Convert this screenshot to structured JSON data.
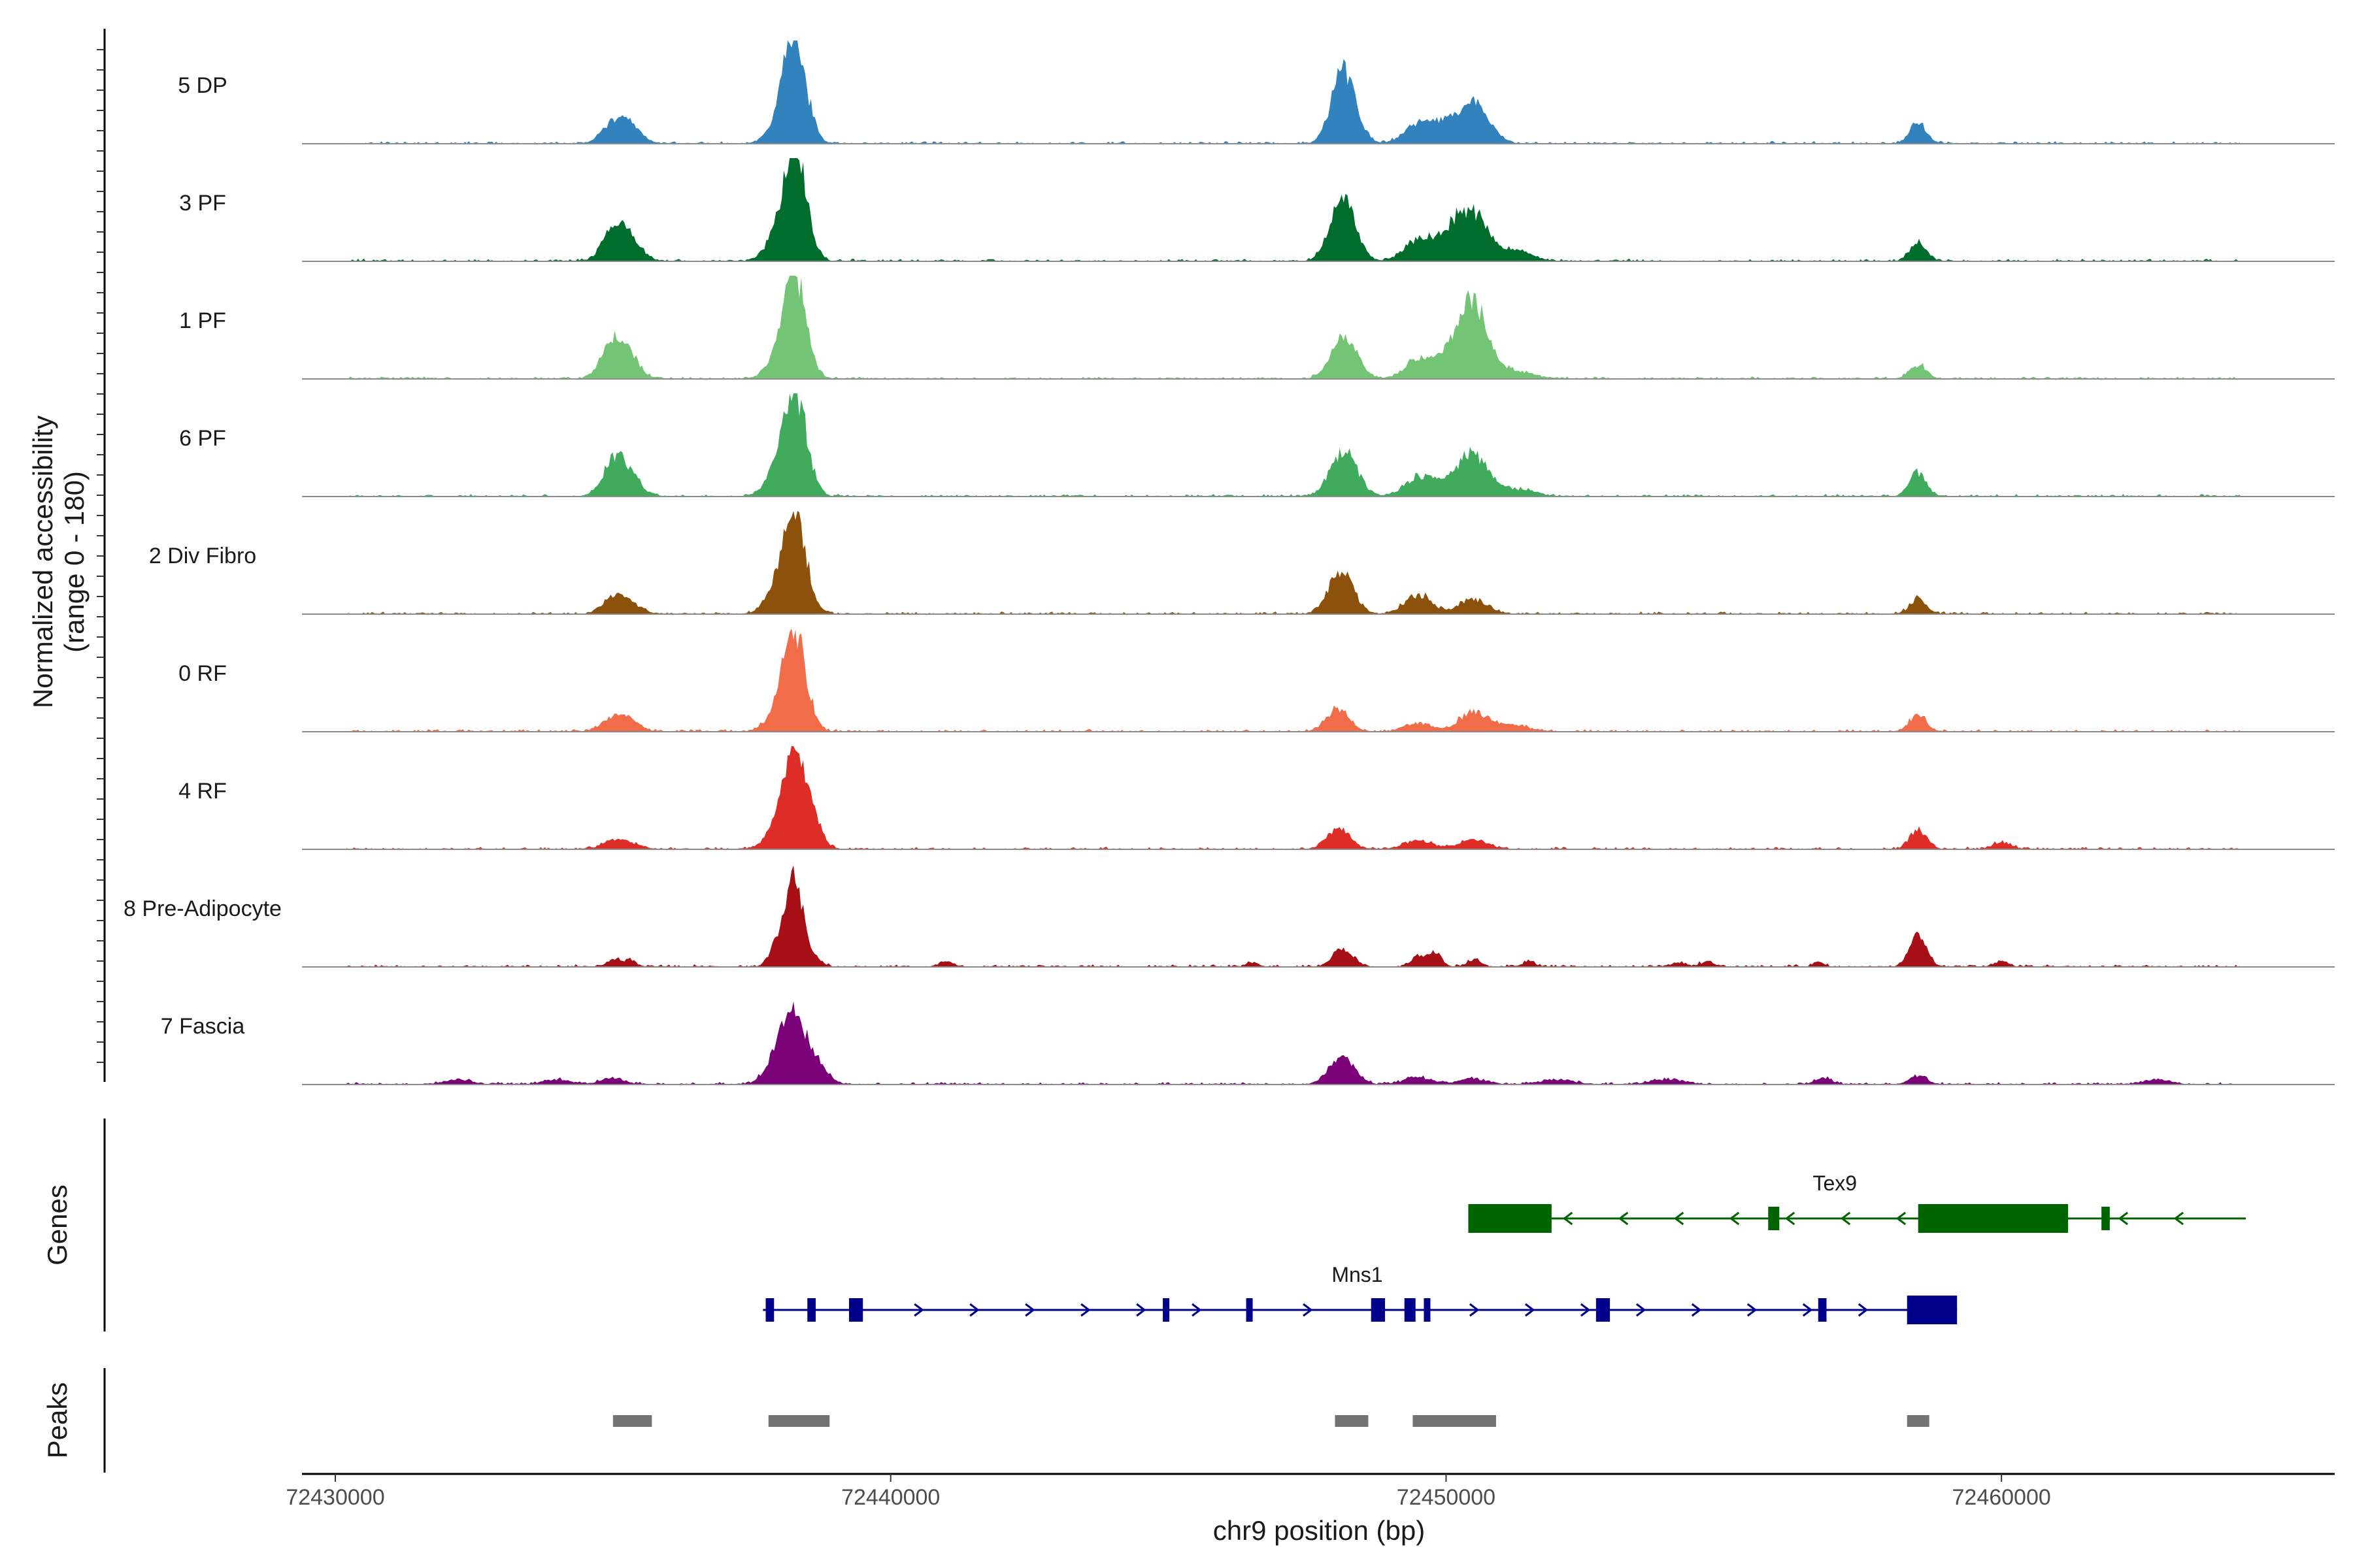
{
  "chart_data": {
    "type": "genome-coverage",
    "chromosome": "chr9",
    "xlim": [
      72429400,
      72466000
    ],
    "xlabel": "chr9 position (bp)",
    "x_ticks": [
      72430000,
      72440000,
      72450000,
      72460000
    ],
    "x_tick_labels": [
      "72430000",
      "72440000",
      "72450000",
      "72460000"
    ],
    "ylabel_line1": "Normalized accessibility",
    "ylabel_line2": "(range 0 - 180)",
    "y_range": [
      0,
      180
    ],
    "tracks": [
      {
        "name": "5 DP",
        "color": "#3182BD",
        "peaks": [
          [
            72435000,
            38,
            200
          ],
          [
            72435300,
            36,
            200
          ],
          [
            72437900,
            22,
            180
          ],
          [
            72438150,
            62,
            180
          ],
          [
            72438300,
            180,
            200
          ],
          [
            72448050,
            82,
            180
          ],
          [
            72448250,
            95,
            200
          ],
          [
            72449500,
            40,
            250
          ],
          [
            72450100,
            46,
            300
          ],
          [
            72450500,
            60,
            200
          ],
          [
            72450800,
            22,
            200
          ],
          [
            72458500,
            44,
            150
          ]
        ]
      },
      {
        "name": "3 PF",
        "color": "#006D2C",
        "peaks": [
          [
            72435000,
            60,
            200
          ],
          [
            72435300,
            46,
            200
          ],
          [
            72437900,
            30,
            200
          ],
          [
            72438200,
            70,
            200
          ],
          [
            72438300,
            180,
            200
          ],
          [
            72448050,
            78,
            200
          ],
          [
            72448250,
            72,
            200
          ],
          [
            72449500,
            44,
            250
          ],
          [
            72450100,
            56,
            250
          ],
          [
            72450500,
            88,
            250
          ],
          [
            72451200,
            22,
            300
          ],
          [
            72458500,
            38,
            150
          ]
        ]
      },
      {
        "name": "1 PF",
        "color": "#74C476",
        "peaks": [
          [
            72435000,
            78,
            200
          ],
          [
            72435300,
            36,
            200
          ],
          [
            72437900,
            24,
            200
          ],
          [
            72438200,
            60,
            200
          ],
          [
            72438300,
            164,
            200
          ],
          [
            72448050,
            42,
            200
          ],
          [
            72448250,
            58,
            200
          ],
          [
            72449500,
            36,
            250
          ],
          [
            72450100,
            46,
            300
          ],
          [
            72450500,
            146,
            250
          ],
          [
            72451200,
            16,
            350
          ],
          [
            72458500,
            28,
            150
          ]
        ]
      },
      {
        "name": "6 PF",
        "color": "#41AB5D",
        "peaks": [
          [
            72435000,
            66,
            200
          ],
          [
            72435300,
            40,
            200
          ],
          [
            72437900,
            32,
            200
          ],
          [
            72438150,
            54,
            200
          ],
          [
            72438300,
            180,
            200
          ],
          [
            72448050,
            66,
            200
          ],
          [
            72448300,
            48,
            200
          ],
          [
            72449500,
            38,
            250
          ],
          [
            72450100,
            28,
            300
          ],
          [
            72450500,
            76,
            250
          ],
          [
            72451200,
            16,
            350
          ],
          [
            72458500,
            52,
            150
          ]
        ]
      },
      {
        "name": "2 Div Fibro",
        "color": "#8C510A",
        "peaks": [
          [
            72435000,
            30,
            200
          ],
          [
            72435300,
            22,
            200
          ],
          [
            72437900,
            30,
            200
          ],
          [
            72438150,
            60,
            200
          ],
          [
            72438300,
            160,
            200
          ],
          [
            72448050,
            60,
            200
          ],
          [
            72448200,
            40,
            200
          ],
          [
            72449500,
            40,
            250
          ],
          [
            72450500,
            32,
            250
          ],
          [
            72458500,
            32,
            150
          ]
        ]
      },
      {
        "name": "0 RF",
        "color": "#F16D4A",
        "peaks": [
          [
            72435000,
            26,
            200
          ],
          [
            72435300,
            20,
            200
          ],
          [
            72437900,
            22,
            200
          ],
          [
            72438150,
            46,
            200
          ],
          [
            72438300,
            170,
            200
          ],
          [
            72448050,
            48,
            200
          ],
          [
            72449500,
            18,
            250
          ],
          [
            72450500,
            42,
            250
          ],
          [
            72451200,
            14,
            300
          ],
          [
            72458500,
            38,
            150
          ]
        ]
      },
      {
        "name": "4 RF",
        "color": "#DE2D26",
        "peaks": [
          [
            72435000,
            16,
            200
          ],
          [
            72435300,
            10,
            200
          ],
          [
            72437900,
            26,
            200
          ],
          [
            72438150,
            50,
            200
          ],
          [
            72438300,
            164,
            200
          ],
          [
            72438650,
            40,
            150
          ],
          [
            72448050,
            44,
            200
          ],
          [
            72449500,
            18,
            250
          ],
          [
            72450500,
            20,
            250
          ],
          [
            72458500,
            42,
            150
          ],
          [
            72460000,
            16,
            150
          ]
        ]
      },
      {
        "name": "8 Pre-Adipocyte",
        "color": "#A50F15",
        "peaks": [
          [
            72435000,
            14,
            120
          ],
          [
            72435300,
            14,
            120
          ],
          [
            72437900,
            30,
            120
          ],
          [
            72438150,
            62,
            150
          ],
          [
            72438300,
            140,
            150
          ],
          [
            72438650,
            14,
            120
          ],
          [
            72441000,
            12,
            120
          ],
          [
            72446500,
            10,
            100
          ],
          [
            72448050,
            24,
            150
          ],
          [
            72448250,
            20,
            150
          ],
          [
            72449500,
            24,
            120
          ],
          [
            72449800,
            30,
            120
          ],
          [
            72450500,
            16,
            120
          ],
          [
            72451500,
            12,
            100
          ],
          [
            72454200,
            10,
            120
          ],
          [
            72454700,
            12,
            120
          ],
          [
            72456700,
            10,
            100
          ],
          [
            72458500,
            66,
            150
          ],
          [
            72460000,
            12,
            120
          ]
        ]
      },
      {
        "name": "7 Fascia",
        "color": "#7A0177",
        "peaks": [
          [
            72432200,
            10,
            250
          ],
          [
            72434000,
            10,
            250
          ],
          [
            72435000,
            14,
            200
          ],
          [
            72437900,
            36,
            200
          ],
          [
            72438150,
            60,
            200
          ],
          [
            72438300,
            100,
            200
          ],
          [
            72438700,
            40,
            180
          ],
          [
            72448050,
            42,
            200
          ],
          [
            72448250,
            24,
            200
          ],
          [
            72449500,
            14,
            250
          ],
          [
            72450500,
            12,
            250
          ],
          [
            72452000,
            10,
            300
          ],
          [
            72454000,
            10,
            300
          ],
          [
            72456800,
            12,
            150
          ],
          [
            72458500,
            18,
            150
          ],
          [
            72462800,
            10,
            250
          ]
        ]
      }
    ],
    "genes": [
      {
        "name": "Tex9",
        "strand": "-",
        "color": "#006400",
        "start": 72450400,
        "end": 72464400,
        "exons": [
          [
            72450400,
            72451900
          ],
          [
            72455800,
            72456000
          ],
          [
            72458500,
            72461200
          ],
          [
            72461800,
            72461950
          ]
        ]
      },
      {
        "name": "Mns1",
        "strand": "+",
        "color": "#00008B",
        "start": 72437700,
        "end": 72459200,
        "exons": [
          [
            72437750,
            72437900
          ],
          [
            72438500,
            72438650
          ],
          [
            72439250,
            72439500
          ],
          [
            72444900,
            72445000
          ],
          [
            72446400,
            72446500
          ],
          [
            72448650,
            72448900
          ],
          [
            72449250,
            72449450
          ],
          [
            72449600,
            72449700
          ],
          [
            72452700,
            72452950
          ],
          [
            72456700,
            72456850
          ],
          [
            72458300,
            72459200
          ]
        ]
      }
    ],
    "genes_label": "Genes",
    "peaks_label": "Peaks",
    "peak_regions": [
      [
        72435000,
        72435700
      ],
      [
        72437800,
        72438900
      ],
      [
        72448000,
        72448600
      ],
      [
        72449400,
        72450900
      ],
      [
        72458300,
        72458700
      ]
    ]
  }
}
